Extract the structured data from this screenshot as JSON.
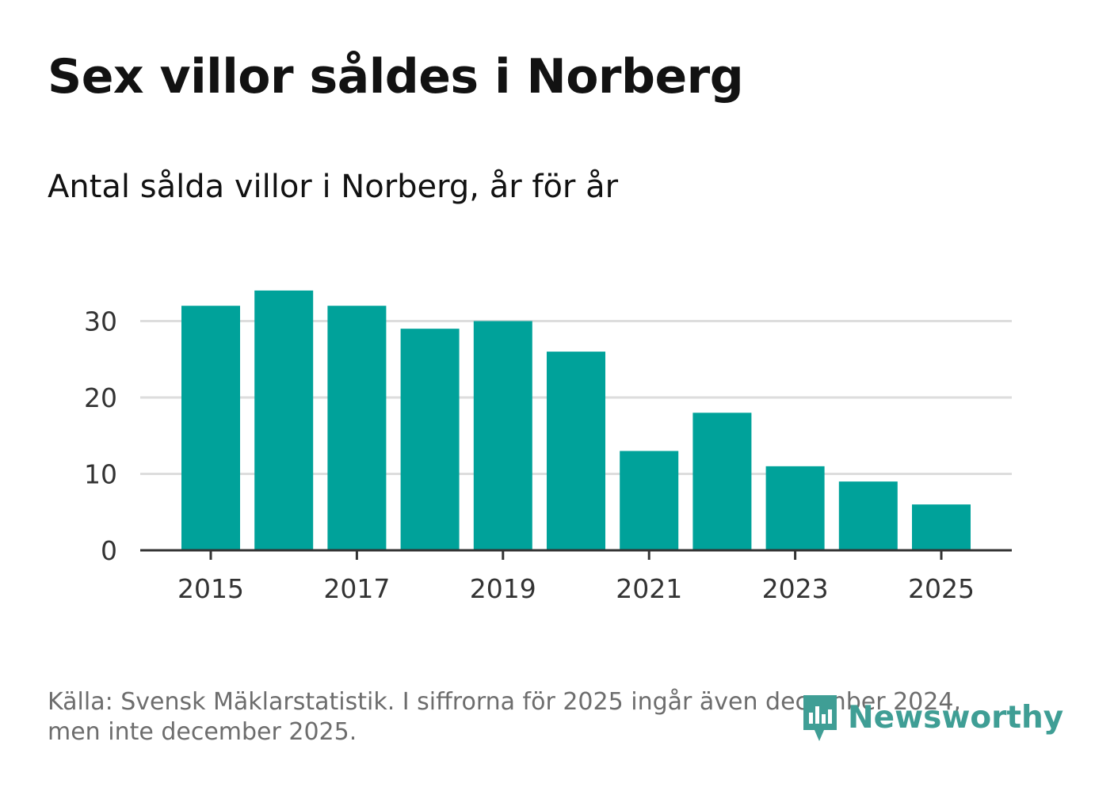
{
  "header": {
    "title": "Sex villor såldes i Norberg",
    "subtitle": "Antal sålda villor i Norberg, år för år"
  },
  "footer": {
    "source_line1": "Källa: Svensk Mäklarstatistik. I siffrorna för 2025 ingår även december 2024,",
    "source_line2": "men inte december 2025.",
    "brand": "Newsworthy",
    "brand_icon": "newsworthy-logo-icon"
  },
  "colors": {
    "bar": "#00a29a",
    "grid": "#dddddd",
    "axis": "#333333",
    "tick_text": "#333333",
    "brand": "#3f9e95"
  },
  "chart_data": {
    "type": "bar",
    "title": "Sex villor såldes i Norberg",
    "subtitle": "Antal sålda villor i Norberg, år för år",
    "xlabel": "",
    "ylabel": "",
    "categories": [
      "2015",
      "2016",
      "2017",
      "2018",
      "2019",
      "2020",
      "2021",
      "2022",
      "2023",
      "2024",
      "2025"
    ],
    "values": [
      32,
      34,
      32,
      29,
      30,
      26,
      13,
      18,
      11,
      9,
      6
    ],
    "x_tick_labels": [
      "2015",
      "2017",
      "2019",
      "2021",
      "2023",
      "2025"
    ],
    "y_ticks": [
      0,
      10,
      20,
      30
    ],
    "ylim": [
      0,
      34
    ],
    "grid": true,
    "legend": "none"
  }
}
